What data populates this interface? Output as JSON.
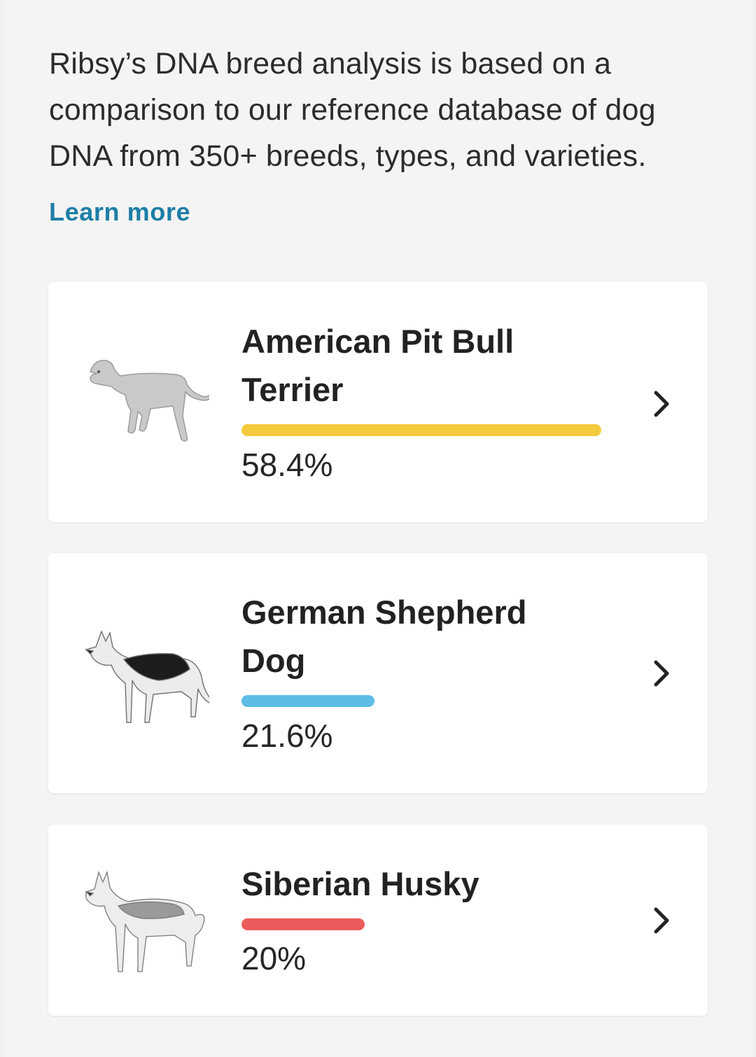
{
  "intro": {
    "text": "Ribsy’s DNA breed analysis is based on a comparison to our reference database of dog DNA from 350+ breeds, types, and varieties.",
    "learn_more": "Learn more",
    "link_color": "#1d7ea6"
  },
  "breeds": [
    {
      "name": "American Pit Bull Terrier",
      "percent_label": "58.4%",
      "percent": 58.4,
      "bar_color": "#f5c93d",
      "icon": "pit-bull-illustration"
    },
    {
      "name": "German Shepherd Dog",
      "percent_label": "21.6%",
      "percent": 21.6,
      "bar_color": "#5bbde6",
      "icon": "german-shepherd-illustration"
    },
    {
      "name": "Siberian Husky",
      "percent_label": "20%",
      "percent": 20,
      "bar_color": "#ec5b5b",
      "icon": "siberian-husky-illustration"
    }
  ]
}
